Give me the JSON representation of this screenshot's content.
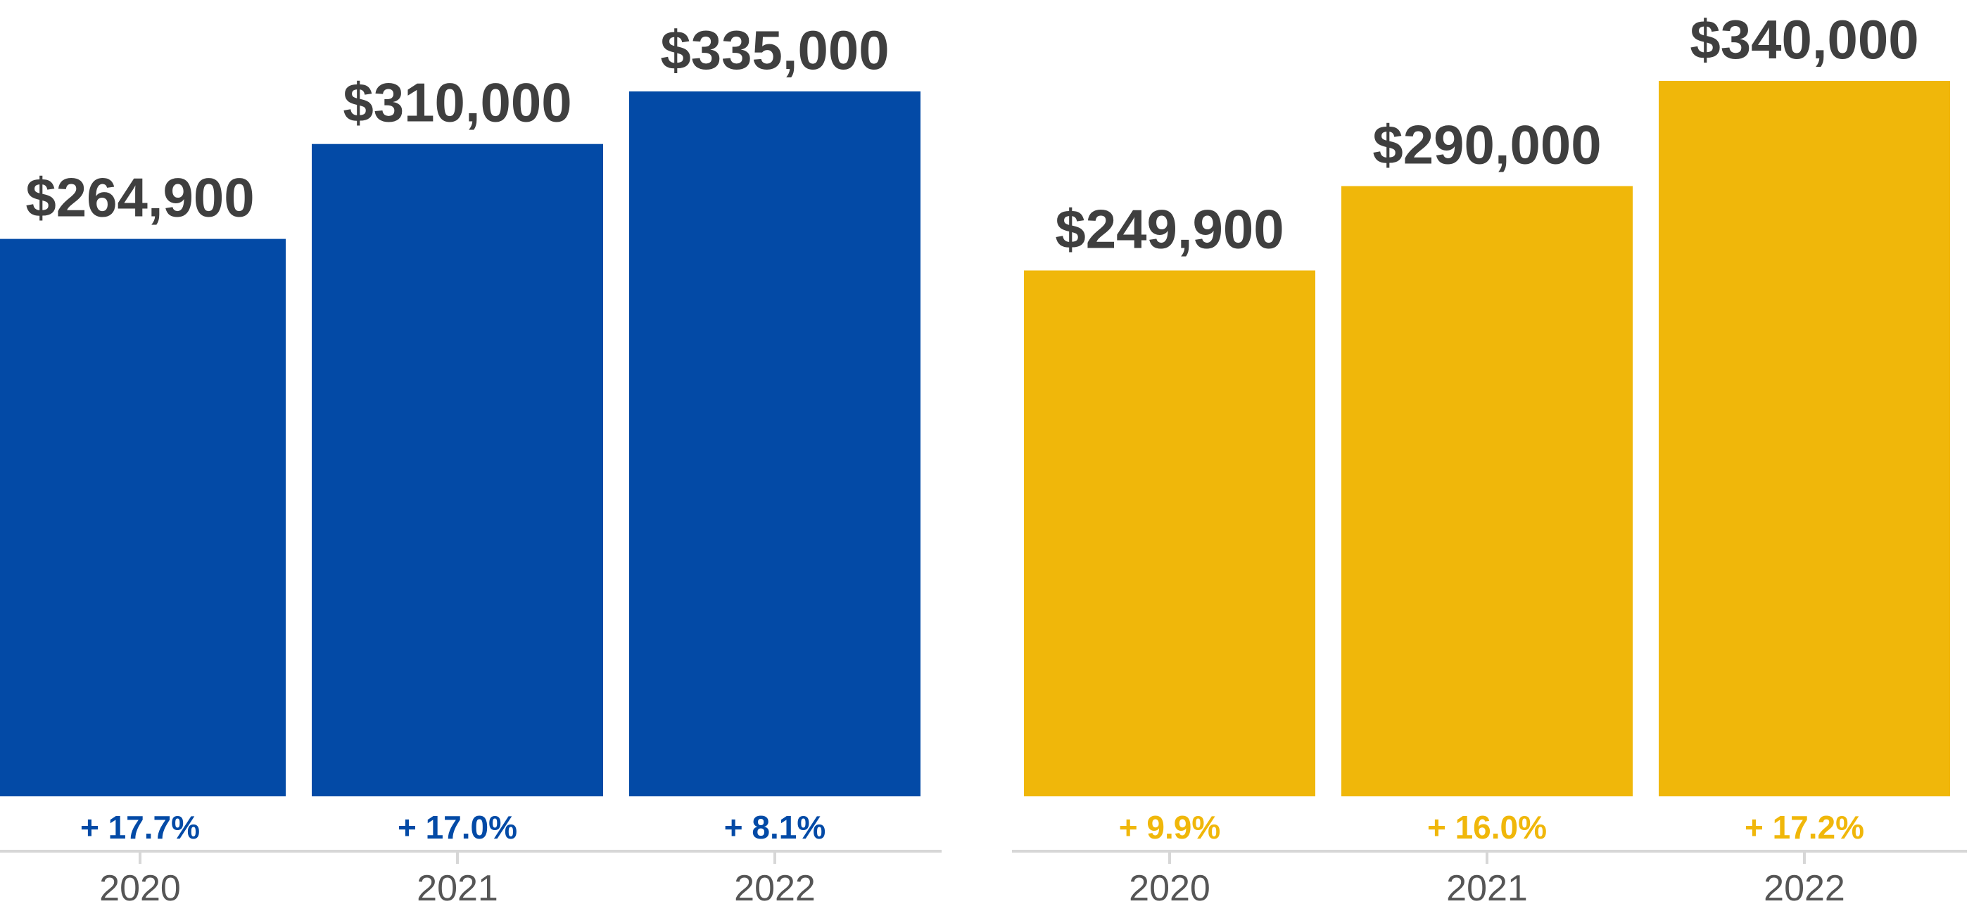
{
  "colors": {
    "background": "#ffffff",
    "value_label": "#3f3f3f",
    "axis_line": "#d7d7d7",
    "tick_label": "#555555"
  },
  "chart_data": [
    {
      "type": "bar",
      "categories": [
        "2020",
        "2021",
        "2022"
      ],
      "values": [
        264900,
        310000,
        335000
      ],
      "value_labels": [
        "$264,900",
        "$310,000",
        "$335,000"
      ],
      "change_labels": [
        "+ 17.7%",
        "+ 17.0%",
        "+ 8.1%"
      ],
      "color": "#034aa6",
      "ylim": [
        0,
        345000
      ],
      "grid": false,
      "title": "",
      "xlabel": "",
      "ylabel": ""
    },
    {
      "type": "bar",
      "categories": [
        "2020",
        "2021",
        "2022"
      ],
      "values": [
        249900,
        290000,
        340000
      ],
      "value_labels": [
        "$249,900",
        "$290,000",
        "$340,000"
      ],
      "change_labels": [
        "+ 9.9%",
        "+ 16.0%",
        "+ 17.2%"
      ],
      "color": "#f0b70a",
      "ylim": [
        0,
        345000
      ],
      "grid": false,
      "title": "",
      "xlabel": "",
      "ylabel": ""
    }
  ]
}
